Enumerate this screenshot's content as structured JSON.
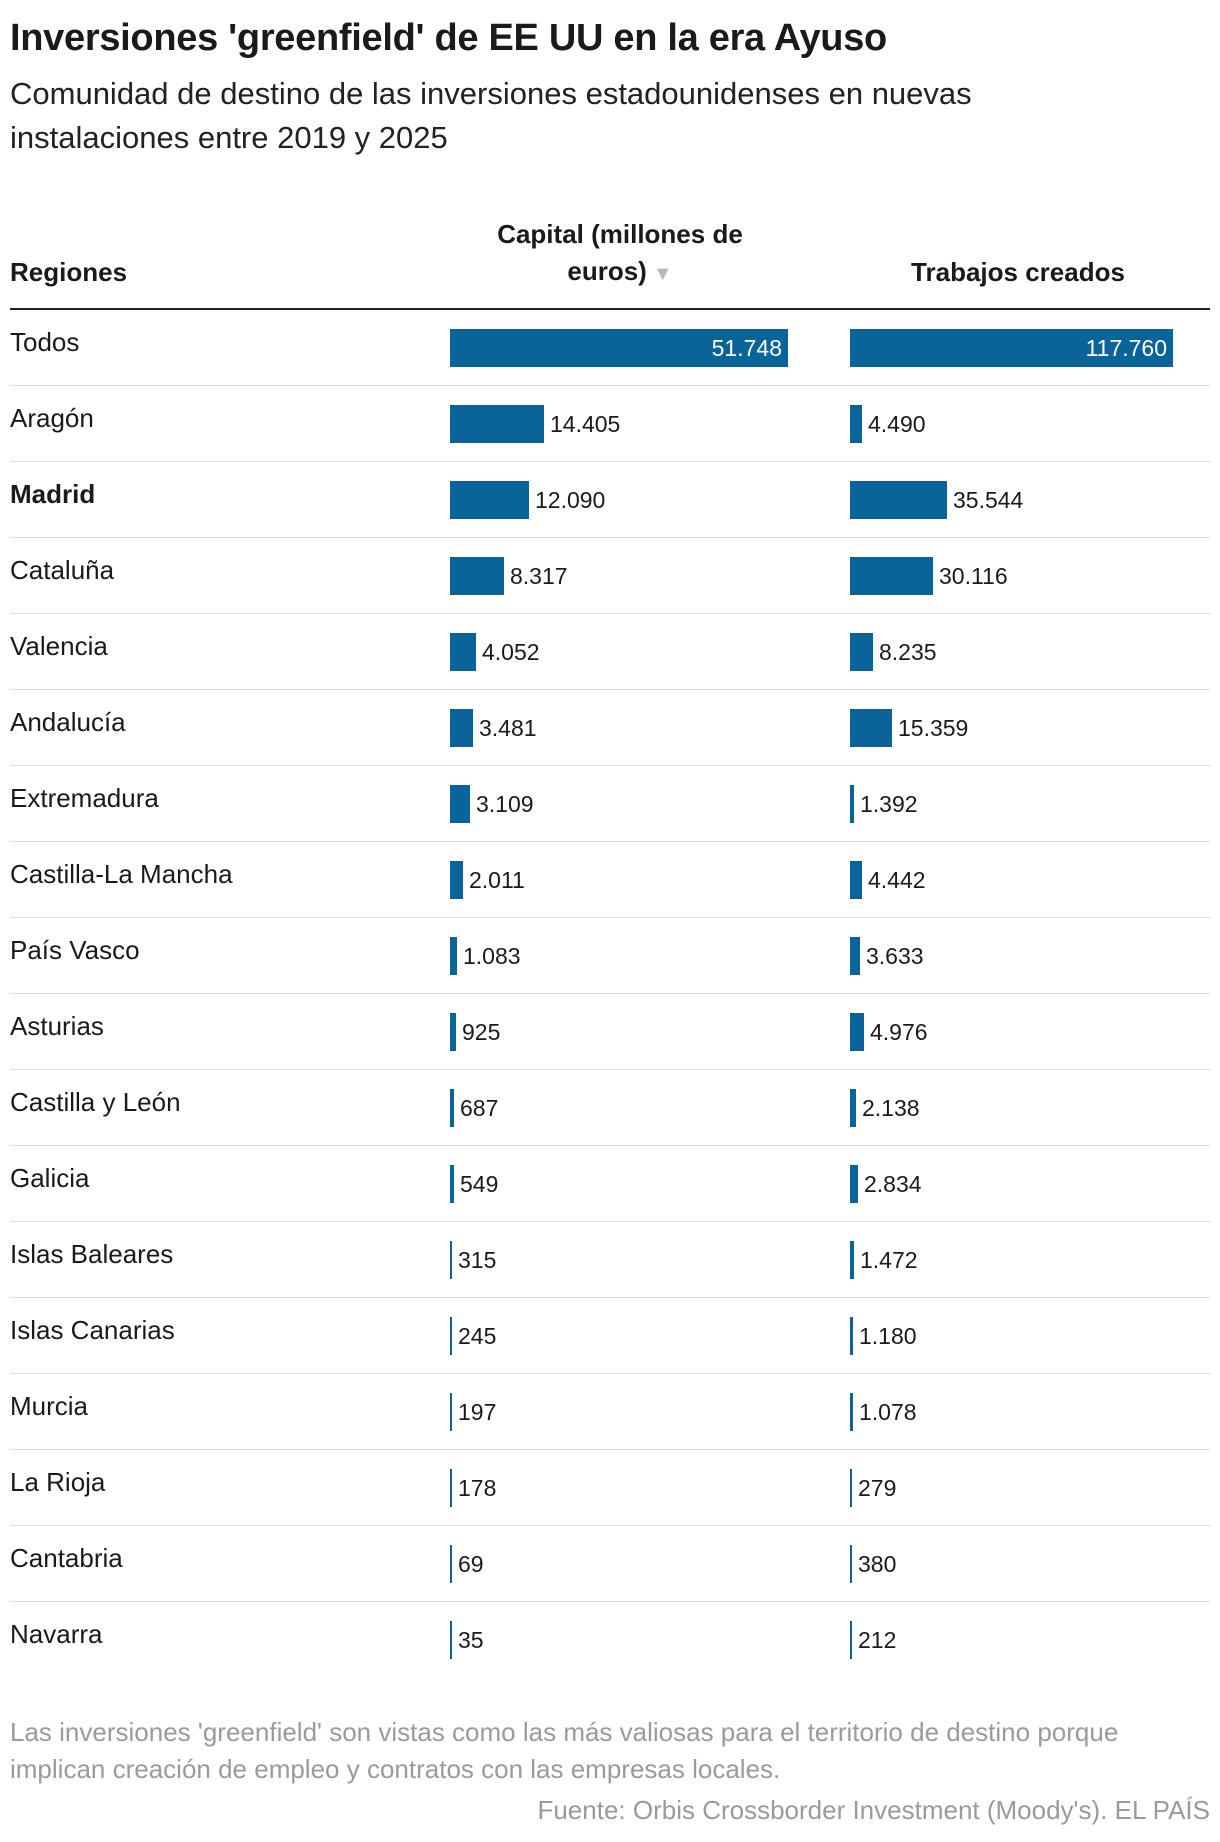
{
  "header": {
    "title": "Inversiones 'greenfield' de EE UU en la era Ayuso",
    "subtitle": "Comunidad de destino de las inversiones estadounidenses en nuevas instalaciones entre 2019 y 2025"
  },
  "columns": {
    "regions": "Regiones",
    "capital": "Capital (millones de euros)",
    "jobs": "Trabajos creados",
    "sort_icon": "sort-descending-icon"
  },
  "footer": {
    "note": "Las inversiones 'greenfield' son vistas como las más valiosas para el territorio de destino porque implican creación de empleo y contratos con las empresas locales.",
    "source": "Fuente: Orbis Crossborder Investment (Moody's). EL PAÍS"
  },
  "colors": {
    "bar": "#0a6499",
    "muted_text": "#9a9a9a"
  },
  "chart_data": {
    "type": "table",
    "columns": [
      "Regiones",
      "Capital (millones de euros)",
      "Trabajos creados"
    ],
    "sorted_by": "Capital (millones de euros)",
    "rows": [
      {
        "region": "Todos",
        "capital": 51748,
        "capital_label": "51.748",
        "jobs": 117760,
        "jobs_label": "117.760",
        "bold": false
      },
      {
        "region": "Aragón",
        "capital": 14405,
        "capital_label": "14.405",
        "jobs": 4490,
        "jobs_label": "4.490",
        "bold": false
      },
      {
        "region": "Madrid",
        "capital": 12090,
        "capital_label": "12.090",
        "jobs": 35544,
        "jobs_label": "35.544",
        "bold": true
      },
      {
        "region": "Cataluña",
        "capital": 8317,
        "capital_label": "8.317",
        "jobs": 30116,
        "jobs_label": "30.116",
        "bold": false
      },
      {
        "region": "Valencia",
        "capital": 4052,
        "capital_label": "4.052",
        "jobs": 8235,
        "jobs_label": "8.235",
        "bold": false
      },
      {
        "region": "Andalucía",
        "capital": 3481,
        "capital_label": "3.481",
        "jobs": 15359,
        "jobs_label": "15.359",
        "bold": false
      },
      {
        "region": "Extremadura",
        "capital": 3109,
        "capital_label": "3.109",
        "jobs": 1392,
        "jobs_label": "1.392",
        "bold": false
      },
      {
        "region": "Castilla-La Mancha",
        "capital": 2011,
        "capital_label": "2.011",
        "jobs": 4442,
        "jobs_label": "4.442",
        "bold": false
      },
      {
        "region": "País Vasco",
        "capital": 1083,
        "capital_label": "1.083",
        "jobs": 3633,
        "jobs_label": "3.633",
        "bold": false
      },
      {
        "region": "Asturias",
        "capital": 925,
        "capital_label": "925",
        "jobs": 4976,
        "jobs_label": "4.976",
        "bold": false
      },
      {
        "region": "Castilla y León",
        "capital": 687,
        "capital_label": "687",
        "jobs": 2138,
        "jobs_label": "2.138",
        "bold": false
      },
      {
        "region": "Galicia",
        "capital": 549,
        "capital_label": "549",
        "jobs": 2834,
        "jobs_label": "2.834",
        "bold": false
      },
      {
        "region": "Islas Baleares",
        "capital": 315,
        "capital_label": "315",
        "jobs": 1472,
        "jobs_label": "1.472",
        "bold": false
      },
      {
        "region": "Islas Canarias",
        "capital": 245,
        "capital_label": "245",
        "jobs": 1180,
        "jobs_label": "1.180",
        "bold": false
      },
      {
        "region": "Murcia",
        "capital": 197,
        "capital_label": "197",
        "jobs": 1078,
        "jobs_label": "1.078",
        "bold": false
      },
      {
        "region": "La Rioja",
        "capital": 178,
        "capital_label": "178",
        "jobs": 279,
        "jobs_label": "279",
        "bold": false
      },
      {
        "region": "Cantabria",
        "capital": 69,
        "capital_label": "69",
        "jobs": 380,
        "jobs_label": "380",
        "bold": false
      },
      {
        "region": "Navarra",
        "capital": 35,
        "capital_label": "35",
        "jobs": 212,
        "jobs_label": "212",
        "bold": false
      }
    ]
  }
}
